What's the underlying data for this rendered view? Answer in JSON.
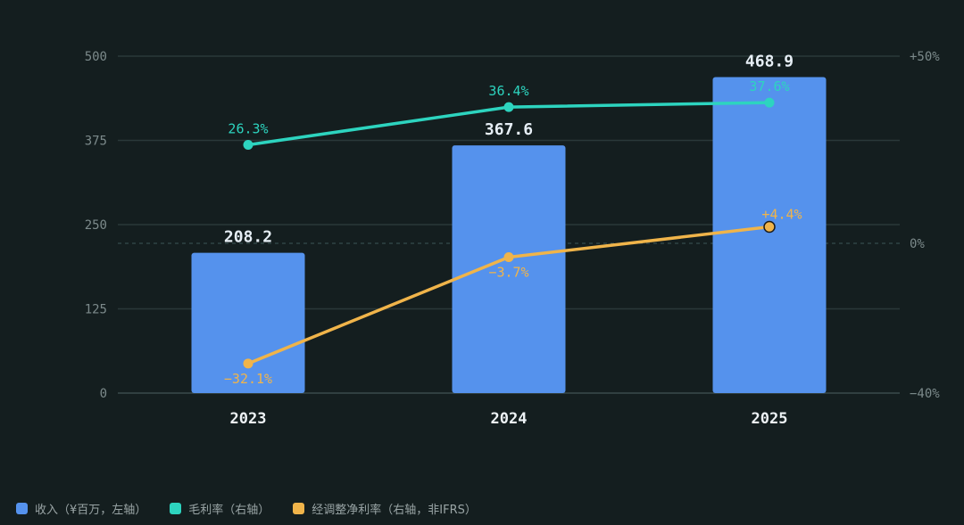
{
  "chart_data": {
    "type": "bar",
    "categories": [
      "2023",
      "2024",
      "2025"
    ],
    "series": [
      {
        "name": "收入（¥百万，左轴）",
        "kind": "bar",
        "axis": "left",
        "color": "#5592ed",
        "values": [
          208.2,
          367.6,
          468.9
        ],
        "value_labels": [
          "208.2",
          "367.6",
          "468.9"
        ]
      },
      {
        "name": "毛利率（右轴）",
        "kind": "line",
        "axis": "right",
        "color": "#2dd4bf",
        "values": [
          26.3,
          36.4,
          37.6
        ],
        "value_labels": [
          "26.3%",
          "36.4%",
          "37.6%"
        ]
      },
      {
        "name": "经调整净利率（右轴，非IFRS）",
        "kind": "line",
        "axis": "right",
        "color": "#f0b44a",
        "values": [
          -32.1,
          -3.7,
          4.4
        ],
        "value_labels": [
          "−32.1%",
          "−3.7%",
          "+4.4%"
        ]
      }
    ],
    "y_left": {
      "range": [
        0,
        500
      ],
      "ticks": [
        0,
        125,
        250,
        375,
        500
      ],
      "tick_labels": [
        "0",
        "125",
        "250",
        "375",
        "500"
      ]
    },
    "y_right": {
      "range": [
        -40,
        50
      ],
      "ticks": [
        -40,
        0,
        50
      ],
      "tick_labels": [
        "−40%",
        "0%",
        "+50%"
      ]
    },
    "grid": true,
    "legend_position": "bottom-left"
  }
}
